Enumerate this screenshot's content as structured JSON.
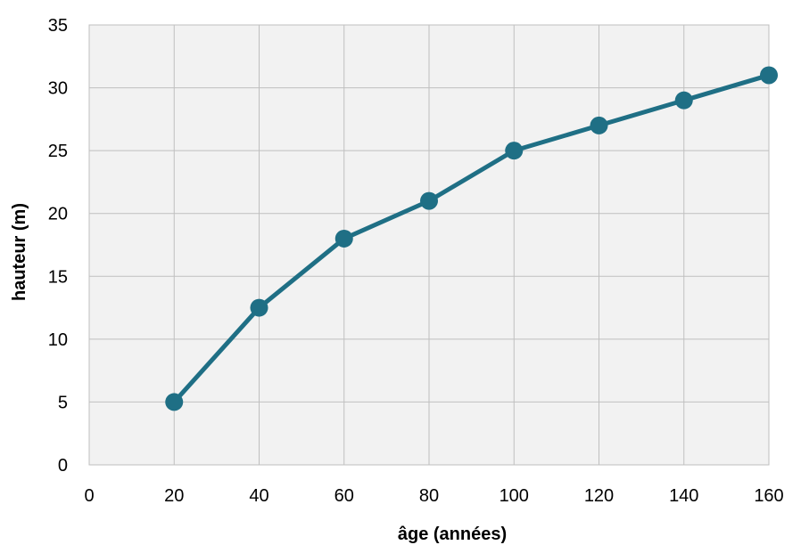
{
  "chart_data": {
    "type": "line",
    "title": "",
    "xlabel": "âge (années)",
    "ylabel": "hauteur (m)",
    "xlim": [
      0,
      160
    ],
    "ylim": [
      0,
      35
    ],
    "x_ticks": [
      0,
      20,
      40,
      60,
      80,
      100,
      120,
      140,
      160
    ],
    "y_ticks": [
      0,
      5,
      10,
      15,
      20,
      25,
      30,
      35
    ],
    "grid": true,
    "legend": "none",
    "series": [
      {
        "color": "#1f6f85",
        "x": [
          20,
          40,
          60,
          80,
          100,
          120,
          140,
          160
        ],
        "y": [
          5,
          12.5,
          18,
          21,
          25,
          27,
          29,
          31
        ]
      }
    ],
    "colors": {
      "plot_background": "#f2f2f2",
      "gridline": "#bfbfbf",
      "line": "#1f6f85"
    }
  }
}
